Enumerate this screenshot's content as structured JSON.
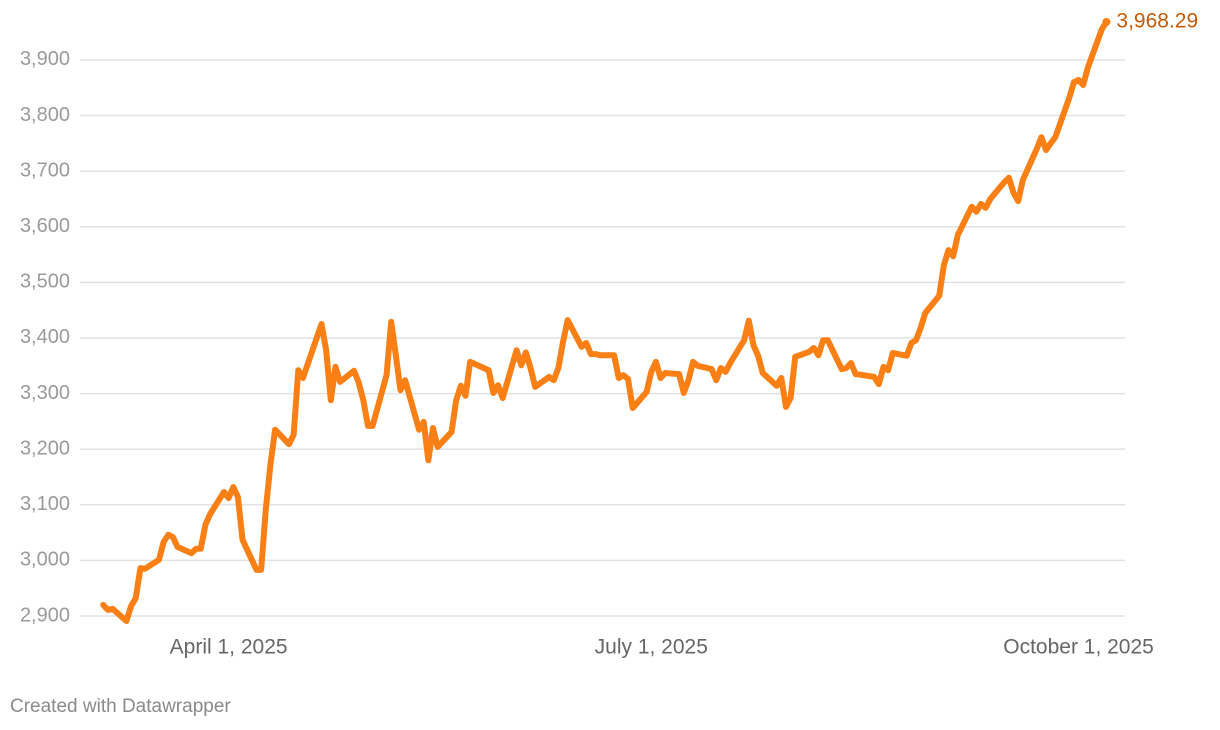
{
  "chart_data": {
    "type": "line",
    "x": [
      "2025-03-05",
      "2025-03-06",
      "2025-03-07",
      "2025-03-10",
      "2025-03-11",
      "2025-03-12",
      "2025-03-13",
      "2025-03-14",
      "2025-03-17",
      "2025-03-18",
      "2025-03-19",
      "2025-03-20",
      "2025-03-21",
      "2025-03-24",
      "2025-03-25",
      "2025-03-26",
      "2025-03-27",
      "2025-03-28",
      "2025-03-31",
      "2025-04-01",
      "2025-04-02",
      "2025-04-03",
      "2025-04-04",
      "2025-04-07",
      "2025-04-08",
      "2025-04-09",
      "2025-04-10",
      "2025-04-11",
      "2025-04-14",
      "2025-04-15",
      "2025-04-16",
      "2025-04-17",
      "2025-04-21",
      "2025-04-22",
      "2025-04-23",
      "2025-04-24",
      "2025-04-25",
      "2025-04-28",
      "2025-04-29",
      "2025-04-30",
      "2025-05-01",
      "2025-05-02",
      "2025-05-05",
      "2025-05-06",
      "2025-05-07",
      "2025-05-08",
      "2025-05-09",
      "2025-05-12",
      "2025-05-13",
      "2025-05-14",
      "2025-05-15",
      "2025-05-16",
      "2025-05-19",
      "2025-05-20",
      "2025-05-21",
      "2025-05-22",
      "2025-05-23",
      "2025-05-27",
      "2025-05-28",
      "2025-05-29",
      "2025-05-30",
      "2025-06-02",
      "2025-06-03",
      "2025-06-04",
      "2025-06-05",
      "2025-06-06",
      "2025-06-09",
      "2025-06-10",
      "2025-06-11",
      "2025-06-12",
      "2025-06-13",
      "2025-06-16",
      "2025-06-17",
      "2025-06-18",
      "2025-06-19",
      "2025-06-20",
      "2025-06-23",
      "2025-06-24",
      "2025-06-25",
      "2025-06-26",
      "2025-06-27",
      "2025-06-30",
      "2025-07-01",
      "2025-07-02",
      "2025-07-03",
      "2025-07-04",
      "2025-07-07",
      "2025-07-08",
      "2025-07-09",
      "2025-07-10",
      "2025-07-11",
      "2025-07-14",
      "2025-07-15",
      "2025-07-16",
      "2025-07-17",
      "2025-07-18",
      "2025-07-21",
      "2025-07-22",
      "2025-07-23",
      "2025-07-24",
      "2025-07-25",
      "2025-07-28",
      "2025-07-29",
      "2025-07-30",
      "2025-07-31",
      "2025-08-01",
      "2025-08-04",
      "2025-08-05",
      "2025-08-06",
      "2025-08-07",
      "2025-08-08",
      "2025-08-11",
      "2025-08-12",
      "2025-08-13",
      "2025-08-14",
      "2025-08-15",
      "2025-08-18",
      "2025-08-19",
      "2025-08-20",
      "2025-08-21",
      "2025-08-22",
      "2025-08-25",
      "2025-08-26",
      "2025-08-27",
      "2025-08-28",
      "2025-08-29",
      "2025-09-01",
      "2025-09-02",
      "2025-09-03",
      "2025-09-04",
      "2025-09-05",
      "2025-09-08",
      "2025-09-09",
      "2025-09-10",
      "2025-09-11",
      "2025-09-12",
      "2025-09-15",
      "2025-09-16",
      "2025-09-17",
      "2025-09-18",
      "2025-09-19",
      "2025-09-22",
      "2025-09-23",
      "2025-09-24",
      "2025-09-25",
      "2025-09-26",
      "2025-09-29",
      "2025-09-30",
      "2025-10-01",
      "2025-10-02",
      "2025-10-03",
      "2025-10-06",
      "2025-10-07"
    ],
    "values": [
      2920,
      2911,
      2913,
      2891,
      2918,
      2932,
      2986,
      2985,
      3001,
      3033,
      3046,
      3042,
      3024,
      3013,
      3021,
      3021,
      3064,
      3083,
      3123,
      3112,
      3132,
      3114,
      3037,
      2983,
      2983,
      3091,
      3172,
      3235,
      3209,
      3226,
      3342,
      3328,
      3425,
      3378,
      3288,
      3348,
      3321,
      3341,
      3320,
      3288,
      3242,
      3242,
      3333,
      3429,
      3369,
      3306,
      3324,
      3235,
      3249,
      3180,
      3238,
      3204,
      3231,
      3288,
      3314,
      3296,
      3357,
      3342,
      3301,
      3315,
      3292,
      3378,
      3351,
      3374,
      3346,
      3312,
      3330,
      3324,
      3346,
      3393,
      3432,
      3384,
      3391,
      3371,
      3371,
      3369,
      3369,
      3328,
      3333,
      3326,
      3274,
      3303,
      3339,
      3357,
      3328,
      3337,
      3335,
      3301,
      3324,
      3357,
      3350,
      3344,
      3324,
      3346,
      3339,
      3355,
      3396,
      3431,
      3387,
      3368,
      3337,
      3314,
      3328,
      3276,
      3292,
      3366,
      3375,
      3382,
      3369,
      3396,
      3396,
      3344,
      3346,
      3355,
      3335,
      3334,
      3330,
      3317,
      3348,
      3342,
      3373,
      3368,
      3391,
      3396,
      3418,
      3445,
      3476,
      3531,
      3558,
      3547,
      3585,
      3636,
      3627,
      3641,
      3634,
      3650,
      3680,
      3688,
      3661,
      3646,
      3684,
      3740,
      3761,
      3738,
      3750,
      3761,
      3832,
      3860,
      3864,
      3855,
      3886,
      3955,
      3968.29
    ],
    "value_labels": [
      null,
      null,
      null,
      null,
      null,
      null,
      null,
      null,
      null,
      null,
      null,
      null,
      null,
      null,
      null,
      null,
      null,
      null,
      null,
      null,
      null,
      null,
      null,
      null,
      null,
      null,
      null,
      null,
      null,
      null,
      null,
      null,
      null,
      null,
      null,
      null,
      null,
      null,
      null,
      null,
      null,
      null,
      null,
      null,
      null,
      null,
      null,
      null,
      null,
      null,
      null,
      null,
      null,
      null,
      null,
      null,
      null,
      null,
      null,
      null,
      null,
      null,
      null,
      null,
      null,
      null,
      null,
      null,
      null,
      null,
      null,
      null,
      null,
      null,
      null,
      null,
      null,
      null,
      null,
      null,
      null,
      null,
      null,
      null,
      null,
      null,
      null,
      null,
      null,
      null,
      null,
      null,
      null,
      null,
      null,
      null,
      null,
      null,
      null,
      null,
      null,
      null,
      null,
      null,
      null,
      null,
      null,
      null,
      null,
      null,
      null,
      null,
      null,
      null,
      null,
      null,
      null,
      null,
      null,
      null,
      null,
      null,
      null,
      null,
      null,
      null,
      null,
      null,
      null,
      null,
      null,
      null,
      null,
      null,
      null,
      null,
      null,
      null,
      null,
      null,
      null,
      null,
      null,
      null,
      null,
      null,
      null,
      null,
      null,
      null,
      null,
      null,
      "3,968.29"
    ],
    "color": "#fa7f14",
    "label_color": "#c45a06",
    "xlim": [
      "2025-02-28",
      "2025-10-11"
    ],
    "xticks": [
      {
        "value": "2025-04-01",
        "label": "April 1, 2025"
      },
      {
        "value": "2025-07-01",
        "label": "July 1, 2025"
      },
      {
        "value": "2025-10-01",
        "label": "October 1, 2025"
      }
    ],
    "ylim": [
      2900,
      3970
    ],
    "yticks": [
      {
        "value": 2900,
        "label": "2,900"
      },
      {
        "value": 3000,
        "label": "3,000"
      },
      {
        "value": 3100,
        "label": "3,100"
      },
      {
        "value": 3200,
        "label": "3,200"
      },
      {
        "value": 3300,
        "label": "3,300"
      },
      {
        "value": 3400,
        "label": "3,400"
      },
      {
        "value": 3500,
        "label": "3,500"
      },
      {
        "value": 3600,
        "label": "3,600"
      },
      {
        "value": 3700,
        "label": "3,700"
      },
      {
        "value": 3800,
        "label": "3,800"
      },
      {
        "value": 3900,
        "label": "3,900"
      }
    ],
    "grid": true,
    "credit": "Created with Datawrapper"
  }
}
